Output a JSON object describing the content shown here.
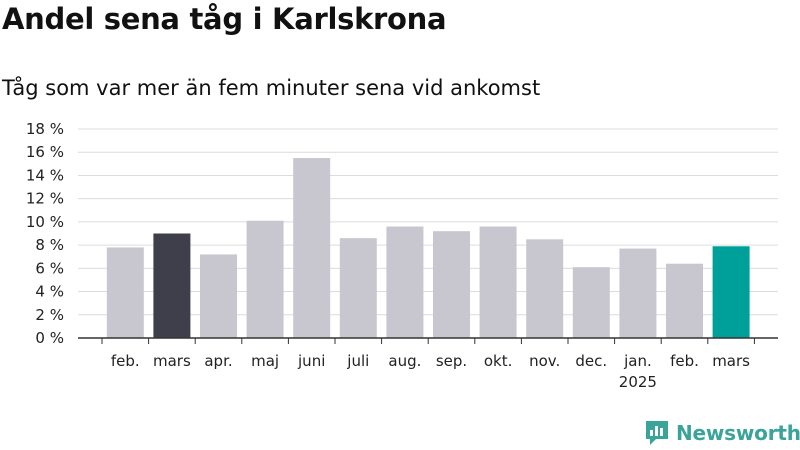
{
  "header": {
    "title": "Andel sena tåg i Karlskrona",
    "subtitle": "Tåg som var mer än fem minuter sena vid ankomst"
  },
  "brand": {
    "name": "Newsworthy",
    "color": "#3aa39a",
    "icon": "newsworthy-logo-icon"
  },
  "colors": {
    "default_bar": "#c8c7d0",
    "highlight_prev": "#3f3e4b",
    "highlight_current": "#00a09a",
    "grid": "#dcdcdc",
    "axis": "#333333"
  },
  "chart_data": {
    "type": "bar",
    "title": "Andel sena tåg i Karlskrona",
    "subtitle": "Tåg som var mer än fem minuter sena vid ankomst",
    "xlabel": "",
    "ylabel": "",
    "ylim": [
      0,
      18
    ],
    "yticks": [
      0,
      2,
      4,
      6,
      8,
      10,
      12,
      14,
      16,
      18
    ],
    "ytick_labels": [
      "0 %",
      "2 %",
      "4 %",
      "6 %",
      "8 %",
      "10 %",
      "12 %",
      "14 %",
      "16 %",
      "18 %"
    ],
    "categories": [
      "feb.",
      "mars",
      "apr.",
      "maj",
      "juni",
      "juli",
      "aug.",
      "sep.",
      "okt.",
      "nov.",
      "dec.",
      "jan.",
      "feb.",
      "mars"
    ],
    "year_labels": [
      {
        "index": 11,
        "label": "2025"
      }
    ],
    "values": [
      7.8,
      9.0,
      7.2,
      10.1,
      15.5,
      8.6,
      9.6,
      9.2,
      9.6,
      8.5,
      6.1,
      7.7,
      6.4,
      7.9
    ],
    "bar_colors": [
      "#c8c7d0",
      "#3f3e4b",
      "#c8c7d0",
      "#c8c7d0",
      "#c8c7d0",
      "#c8c7d0",
      "#c8c7d0",
      "#c8c7d0",
      "#c8c7d0",
      "#c8c7d0",
      "#c8c7d0",
      "#c8c7d0",
      "#c8c7d0",
      "#00a09a"
    ],
    "grid": true,
    "legend": "none"
  }
}
